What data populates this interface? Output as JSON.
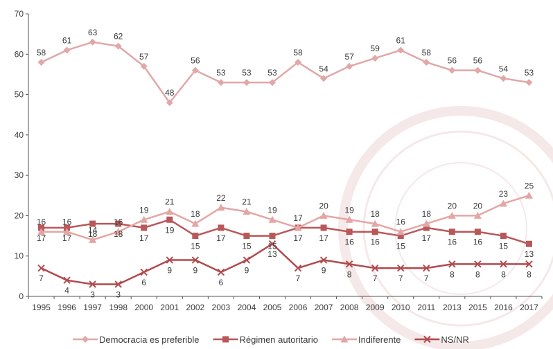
{
  "chart_data": {
    "type": "line",
    "title": "",
    "xlabel": "",
    "ylabel": "",
    "ylim": [
      0,
      70
    ],
    "yticks": [
      0,
      10,
      20,
      30,
      40,
      50,
      60,
      70
    ],
    "grid": false,
    "legend_position": "bottom",
    "categories": [
      "1995",
      "1996",
      "1997",
      "1998",
      "2000",
      "2001",
      "2002",
      "2003",
      "2004",
      "2005",
      "2006",
      "2007",
      "2008",
      "2009",
      "2010",
      "2011",
      "2013",
      "2015",
      "2016",
      "2017"
    ],
    "series": [
      {
        "name": "Democracia es preferible",
        "marker": "diamond",
        "color": "#e0a8a8",
        "values": [
          58,
          61,
          63,
          62,
          57,
          48,
          56,
          53,
          53,
          53,
          58,
          54,
          57,
          59,
          61,
          58,
          56,
          56,
          54,
          53
        ],
        "label_position": "above"
      },
      {
        "name": "Régimen autoritario",
        "marker": "square",
        "color": "#b95759",
        "values": [
          17,
          17,
          18,
          18,
          17,
          19,
          15,
          17,
          15,
          15,
          17,
          17,
          16,
          16,
          15,
          17,
          16,
          16,
          15,
          13
        ],
        "label_position": "below"
      },
      {
        "name": "Indiferente",
        "marker": "triangle",
        "color": "#e4a6a5",
        "values": [
          16,
          16,
          14,
          16,
          19,
          21,
          18,
          22,
          21,
          19,
          17,
          20,
          19,
          18,
          16,
          18,
          20,
          20,
          23,
          25
        ],
        "label_position": "above"
      },
      {
        "name": "NS/NR",
        "marker": "x",
        "color": "#b14a4e",
        "values": [
          7,
          4,
          3,
          3,
          6,
          9,
          9,
          6,
          9,
          13,
          7,
          9,
          8,
          7,
          7,
          7,
          8,
          8,
          8,
          8
        ],
        "label_position": "below"
      }
    ]
  }
}
